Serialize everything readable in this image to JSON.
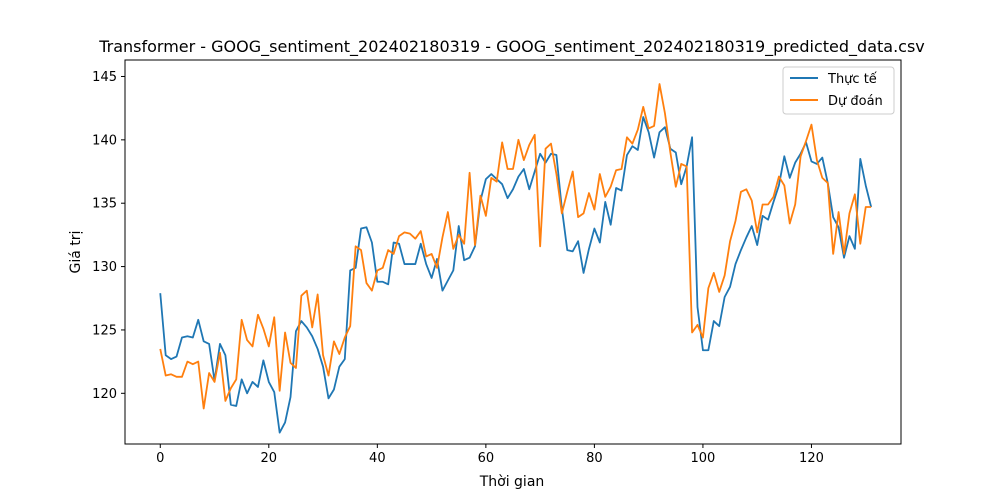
{
  "chart_data": {
    "type": "line",
    "title": "Transformer - GOOG_sentiment_202402180319 - GOOG_sentiment_202402180319_predicted_data.csv",
    "xlabel": "Thời gian",
    "ylabel": "Giá trị",
    "xlim": [
      -6.5,
      136.5
    ],
    "ylim": [
      116.0,
      146.3
    ],
    "xticks": [
      0,
      20,
      40,
      60,
      80,
      100,
      120
    ],
    "yticks": [
      120,
      125,
      130,
      135,
      140,
      145
    ],
    "grid": false,
    "legend_position": "top-right",
    "series": [
      {
        "name": "Thực tế",
        "color": "#1f77b4",
        "values": [
          127.9,
          123.0,
          122.7,
          122.9,
          124.4,
          124.5,
          124.4,
          125.8,
          124.1,
          123.9,
          121.0,
          123.9,
          123.0,
          119.1,
          119.0,
          121.1,
          120.0,
          120.9,
          120.5,
          122.6,
          120.9,
          120.1,
          116.9,
          117.7,
          119.7,
          124.9,
          125.7,
          125.2,
          124.5,
          123.5,
          122.1,
          119.6,
          120.3,
          122.1,
          122.7,
          129.7,
          129.9,
          133.0,
          133.1,
          131.9,
          128.8,
          128.8,
          128.6,
          131.9,
          131.8,
          130.2,
          130.2,
          130.2,
          131.8,
          130.2,
          129.1,
          130.6,
          128.1,
          128.9,
          129.7,
          133.2,
          130.5,
          130.7,
          131.6,
          135.2,
          136.9,
          137.3,
          136.9,
          136.5,
          135.4,
          136.1,
          137.1,
          137.7,
          136.1,
          137.5,
          138.9,
          138.2,
          138.9,
          138.8,
          134.6,
          131.3,
          131.2,
          132.0,
          129.5,
          131.4,
          133.0,
          131.9,
          135.1,
          133.3,
          136.2,
          136.0,
          138.8,
          139.5,
          139.2,
          141.8,
          140.6,
          138.6,
          140.6,
          141.0,
          139.3,
          139.0,
          136.5,
          137.9,
          140.2,
          126.8,
          123.4,
          123.4,
          125.7,
          125.3,
          127.6,
          128.4,
          130.2,
          131.3,
          132.3,
          133.2,
          131.7,
          134.0,
          133.7,
          135.1,
          136.4,
          138.7,
          137.0,
          138.2,
          138.9,
          139.8,
          138.3,
          138.1,
          138.6,
          136.6,
          133.9,
          133.1,
          130.7,
          132.4,
          131.4,
          138.5,
          136.4,
          134.7
        ]
      },
      {
        "name": "Dự đoán",
        "color": "#ff7f0e",
        "values": [
          123.5,
          121.4,
          121.5,
          121.3,
          121.3,
          122.5,
          122.3,
          122.5,
          118.8,
          121.6,
          120.9,
          123.2,
          119.4,
          120.4,
          121.1,
          125.8,
          124.2,
          123.7,
          126.2,
          125.1,
          123.7,
          126.0,
          120.2,
          124.8,
          122.4,
          122.0,
          127.7,
          128.1,
          125.2,
          127.8,
          123.0,
          121.4,
          124.1,
          123.1,
          124.4,
          125.3,
          131.6,
          131.3,
          128.7,
          128.1,
          129.7,
          129.9,
          131.3,
          131.0,
          132.4,
          132.7,
          132.6,
          132.2,
          132.8,
          130.8,
          131.0,
          129.9,
          132.3,
          134.3,
          131.4,
          132.5,
          131.8,
          137.4,
          131.7,
          135.6,
          134.0,
          137.0,
          136.7,
          139.8,
          137.7,
          137.7,
          140.0,
          138.4,
          139.6,
          140.4,
          131.6,
          139.3,
          139.7,
          137.3,
          134.2,
          135.9,
          137.5,
          133.9,
          134.2,
          135.8,
          134.5,
          137.3,
          135.5,
          136.3,
          137.6,
          137.7,
          140.2,
          139.7,
          140.8,
          142.6,
          140.9,
          141.1,
          144.4,
          142.1,
          139.0,
          136.3,
          138.1,
          137.9,
          124.8,
          125.4,
          124.4,
          128.3,
          129.5,
          128.0,
          129.3,
          132.0,
          133.6,
          135.9,
          136.1,
          135.2,
          132.7,
          134.9,
          134.9,
          135.5,
          137.1,
          136.4,
          133.4,
          134.9,
          138.7,
          139.9,
          141.2,
          138.4,
          137.0,
          136.6,
          131.0,
          134.3,
          131.0,
          134.2,
          135.7,
          131.8,
          134.7,
          134.7
        ]
      }
    ]
  }
}
